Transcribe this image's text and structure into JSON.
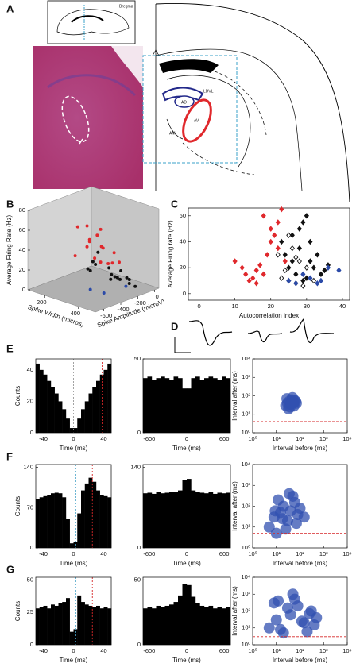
{
  "panel_labels": [
    "A",
    "B",
    "C",
    "D",
    "E",
    "F",
    "G"
  ],
  "atlas": {
    "labels": [
      "Bregma",
      "LDVL",
      "AD",
      "AV",
      "AM"
    ]
  },
  "chart_data": [
    {
      "type": "scatter3d",
      "xlabel": "Spike Width (micros)",
      "ylabel": "Spike Amplitude (microV)",
      "zlabel": "Average Firing Rate (Hz)",
      "xlim": [
        100,
        500
      ],
      "xticks": [
        200,
        400
      ],
      "ylim": [
        -700,
        50
      ],
      "yticks": [
        -600,
        -400,
        -200,
        0
      ],
      "zlim": [
        0,
        80
      ],
      "zticks": [
        0,
        20,
        40,
        60,
        80
      ],
      "series": [
        {
          "color": "#e0282c",
          "x": [
            250,
            280,
            300,
            320,
            260,
            290,
            310,
            330,
            350,
            270,
            240,
            300,
            280,
            320,
            340,
            260
          ],
          "y": [
            -300,
            -200,
            -400,
            -250,
            -150,
            -350,
            -100,
            -300,
            -200,
            -450,
            -250,
            -150,
            -500,
            -350,
            -100,
            -200
          ],
          "z": [
            60,
            55,
            45,
            40,
            35,
            50,
            30,
            28,
            25,
            65,
            42,
            20,
            38,
            33,
            22,
            48
          ]
        },
        {
          "color": "#111111",
          "x": [
            350,
            380,
            400,
            420,
            360,
            390,
            410,
            370,
            430,
            450,
            340,
            400,
            380,
            420,
            440,
            460
          ],
          "y": [
            -400,
            -300,
            -200,
            -350,
            -450,
            -250,
            -150,
            -500,
            -300,
            -200,
            -350,
            -100,
            -550,
            -250,
            -400,
            -150
          ],
          "z": [
            30,
            25,
            20,
            22,
            35,
            15,
            12,
            28,
            18,
            10,
            40,
            8,
            32,
            14,
            20,
            6
          ]
        },
        {
          "color": "#2b4aa8",
          "x": [
            420,
            450,
            480
          ],
          "y": [
            -600,
            -500,
            -300
          ],
          "z": [
            15,
            10,
            12
          ]
        }
      ]
    },
    {
      "type": "scatter",
      "marker": "diamond",
      "xlabel": "Autocorrelation index",
      "ylabel": "Average Firing rate (Hz)",
      "xlim": [
        -3,
        42
      ],
      "xticks": [
        0,
        10,
        20,
        30,
        40
      ],
      "ylim": [
        -5,
        66
      ],
      "yticks": [
        0,
        20,
        40,
        60
      ],
      "series": [
        {
          "color": "#e0282c",
          "filled": true,
          "x": [
            10,
            12,
            13,
            14,
            15,
            16,
            17,
            18,
            19,
            20,
            21,
            22,
            23,
            22,
            24,
            20,
            18,
            16
          ],
          "y": [
            25,
            20,
            15,
            10,
            12,
            18,
            22,
            15,
            30,
            40,
            45,
            55,
            65,
            35,
            25,
            50,
            60,
            8
          ]
        },
        {
          "color": "#111111",
          "filled": true,
          "x": [
            23,
            24,
            25,
            26,
            27,
            28,
            29,
            30,
            31,
            32,
            33,
            34,
            25,
            27,
            29,
            31,
            26,
            28,
            30,
            35,
            36
          ],
          "y": [
            40,
            30,
            20,
            25,
            15,
            35,
            10,
            60,
            40,
            20,
            30,
            15,
            10,
            8,
            55,
            25,
            45,
            50,
            12,
            18,
            22
          ]
        },
        {
          "color": "#111111",
          "filled": false,
          "x": [
            22,
            24,
            26,
            28,
            30,
            32,
            23,
            25,
            27,
            29
          ],
          "y": [
            30,
            18,
            35,
            25,
            20,
            10,
            12,
            45,
            28,
            6
          ]
        },
        {
          "color": "#2b4aa8",
          "filled": true,
          "x": [
            25,
            27,
            29,
            31,
            33,
            34,
            36,
            39
          ],
          "y": [
            10,
            8,
            15,
            12,
            8,
            10,
            20,
            18
          ]
        }
      ]
    },
    {
      "type": "histogram",
      "xlabel": "Time (ms)",
      "ylabel": "Counts",
      "xlim": [
        -50,
        50
      ],
      "xticks": [
        -40,
        0,
        40
      ],
      "ylim": [
        0,
        47
      ],
      "yticks": [
        0,
        20,
        40
      ],
      "bins": [
        -50,
        -45,
        -40,
        -35,
        -30,
        -25,
        -20,
        -15,
        -10,
        -5,
        0,
        5,
        10,
        15,
        20,
        25,
        30,
        35,
        40,
        45,
        50
      ],
      "counts": [
        44,
        40,
        37,
        33,
        29,
        25,
        20,
        15,
        9,
        3,
        3,
        9,
        15,
        20,
        25,
        29,
        33,
        37,
        40,
        44
      ],
      "markers": [
        {
          "value": 0,
          "color": "#9a9a9a"
        },
        {
          "value": 38,
          "color": "#d62728"
        }
      ]
    },
    {
      "type": "histogram",
      "xlabel": "Time (ms)",
      "xlim": [
        -700,
        700
      ],
      "xticks": [
        -600,
        0,
        600
      ],
      "ylim": [
        0,
        50
      ],
      "yticks": [
        0,
        50
      ],
      "bins": [
        -700,
        -630,
        -560,
        -490,
        -420,
        -350,
        -280,
        -210,
        -140,
        -70,
        0,
        70,
        140,
        210,
        280,
        350,
        420,
        490,
        560,
        630,
        700
      ],
      "counts": [
        37,
        38,
        36,
        37,
        38,
        37,
        36,
        38,
        37,
        30,
        30,
        37,
        38,
        36,
        37,
        38,
        37,
        36,
        38,
        37
      ]
    },
    {
      "type": "scatter",
      "log": true,
      "marker": "dot",
      "xlabel": "Interval before (ms)",
      "ylabel": "Interval after (ms)",
      "xlim": [
        1,
        10000
      ],
      "ylim": [
        1,
        10000
      ],
      "xticks": [
        {
          "value": 1,
          "label": "10⁰"
        },
        {
          "value": 10,
          "label": "10¹"
        },
        {
          "value": 100,
          "label": "10²"
        },
        {
          "value": 1000,
          "label": "10³"
        },
        {
          "value": 10000,
          "label": "10⁴"
        }
      ],
      "yticks": [
        {
          "value": 1,
          "label": "10⁰"
        },
        {
          "value": 10,
          "label": "10¹"
        },
        {
          "value": 100,
          "label": "10²"
        },
        {
          "value": 1000,
          "label": "10³"
        },
        {
          "value": 10000,
          "label": "10⁴"
        }
      ],
      "hline": {
        "value": 4,
        "color": "#d62728"
      },
      "series": [
        {
          "color": "#3150b0",
          "filled": true,
          "x": [
            25,
            30,
            35,
            40,
            45,
            50,
            55,
            60,
            70,
            28,
            38,
            48,
            65,
            33,
            42,
            52
          ],
          "y": [
            30,
            40,
            50,
            35,
            60,
            45,
            28,
            55,
            40,
            70,
            25,
            80,
            50,
            20,
            38,
            42
          ]
        }
      ]
    },
    {
      "type": "histogram",
      "xlabel": "Time (ms)",
      "ylabel": "Counts",
      "xlim": [
        -50,
        50
      ],
      "xticks": [
        -40,
        0,
        40
      ],
      "ylim": [
        0,
        145
      ],
      "yticks": [
        0,
        70,
        140
      ],
      "bins": [
        -50,
        -45,
        -40,
        -35,
        -30,
        -25,
        -20,
        -15,
        -10,
        -5,
        0,
        5,
        10,
        15,
        20,
        25,
        30,
        35,
        40,
        45,
        50
      ],
      "counts": [
        85,
        88,
        90,
        92,
        95,
        96,
        95,
        88,
        50,
        8,
        10,
        60,
        100,
        112,
        122,
        115,
        100,
        92,
        90,
        88
      ],
      "markers": [
        {
          "value": 3,
          "color": "#4aa3c8"
        },
        {
          "value": 25,
          "color": "#d62728"
        }
      ]
    },
    {
      "type": "histogram",
      "xlabel": "Time (ms)",
      "xlim": [
        -700,
        700
      ],
      "xticks": [
        -600,
        0,
        600
      ],
      "ylim": [
        0,
        145
      ],
      "yticks": [
        0,
        140
      ],
      "bins": [
        -700,
        -630,
        -560,
        -490,
        -420,
        -350,
        -280,
        -210,
        -140,
        -70,
        0,
        70,
        140,
        210,
        280,
        350,
        420,
        490,
        560,
        630,
        700
      ],
      "counts": [
        95,
        96,
        94,
        97,
        95,
        96,
        98,
        97,
        100,
        118,
        120,
        100,
        97,
        96,
        95,
        97,
        94,
        96,
        95,
        96
      ]
    },
    {
      "type": "scatter",
      "log": true,
      "marker": "dot",
      "xlabel": "Interval before (ms)",
      "ylabel": "Interval after (ms)",
      "xlim": [
        1,
        10000
      ],
      "ylim": [
        1,
        10000
      ],
      "xticks": [
        {
          "value": 1,
          "label": "10⁰"
        },
        {
          "value": 10,
          "label": "10¹"
        },
        {
          "value": 100,
          "label": "10²"
        },
        {
          "value": 1000,
          "label": "10³"
        },
        {
          "value": 10000,
          "label": "10⁴"
        }
      ],
      "yticks": [
        {
          "value": 1,
          "label": "10⁰"
        },
        {
          "value": 10,
          "label": "10¹"
        },
        {
          "value": 100,
          "label": "10²"
        },
        {
          "value": 1000,
          "label": "10³"
        },
        {
          "value": 10000,
          "label": "10⁴"
        }
      ],
      "hline": {
        "value": 5,
        "color": "#d62728"
      },
      "series": [
        {
          "color": "#3150b0",
          "filled": true,
          "x": [
            5,
            8,
            10,
            15,
            20,
            30,
            40,
            60,
            80,
            100,
            150,
            12,
            25,
            50,
            70,
            9,
            18,
            35
          ],
          "y": [
            10,
            30,
            5,
            50,
            100,
            20,
            60,
            150,
            40,
            80,
            30,
            200,
            8,
            300,
            15,
            60,
            25,
            400
          ]
        }
      ]
    },
    {
      "type": "histogram",
      "xlabel": "Time (ms)",
      "ylabel": "Counts",
      "xlim": [
        -50,
        50
      ],
      "xticks": [
        -40,
        0,
        40
      ],
      "ylim": [
        0,
        52
      ],
      "yticks": [
        0,
        25,
        50
      ],
      "bins": [
        -50,
        -45,
        -40,
        -35,
        -30,
        -25,
        -20,
        -15,
        -10,
        -5,
        0,
        5,
        10,
        15,
        20,
        25,
        30,
        35,
        40,
        45,
        50
      ],
      "counts": [
        28,
        29,
        30,
        28,
        31,
        30,
        32,
        33,
        36,
        10,
        12,
        38,
        33,
        31,
        30,
        29,
        30,
        28,
        29,
        28
      ],
      "markers": [
        {
          "value": 3,
          "color": "#4aa3c8"
        },
        {
          "value": 25,
          "color": "#d62728"
        }
      ]
    },
    {
      "type": "histogram",
      "xlabel": "Time (ms)",
      "xlim": [
        -700,
        700
      ],
      "xticks": [
        -600,
        0,
        600
      ],
      "ylim": [
        0,
        52
      ],
      "yticks": [
        0,
        50
      ],
      "bins": [
        -700,
        -630,
        -560,
        -490,
        -420,
        -350,
        -280,
        -210,
        -140,
        -70,
        0,
        70,
        140,
        210,
        280,
        350,
        420,
        490,
        560,
        630,
        700
      ],
      "counts": [
        28,
        29,
        28,
        30,
        29,
        30,
        31,
        33,
        38,
        47,
        46,
        37,
        32,
        30,
        29,
        30,
        28,
        29,
        28,
        29
      ]
    },
    {
      "type": "scatter",
      "log": true,
      "marker": "dot",
      "xlabel": "Interval before (ms)",
      "ylabel": "Interval after (ms)",
      "xlim": [
        1,
        10000
      ],
      "ylim": [
        1,
        10000
      ],
      "xticks": [
        {
          "value": 1,
          "label": "10⁰"
        },
        {
          "value": 10,
          "label": "10¹"
        },
        {
          "value": 100,
          "label": "10²"
        },
        {
          "value": 1000,
          "label": "10³"
        },
        {
          "value": 10000,
          "label": "10⁴"
        }
      ],
      "yticks": [
        {
          "value": 1,
          "label": "10⁰"
        },
        {
          "value": 10,
          "label": "10¹"
        },
        {
          "value": 100,
          "label": "10²"
        },
        {
          "value": 1000,
          "label": "10³"
        },
        {
          "value": 10000,
          "label": "10⁴"
        }
      ],
      "hline": {
        "value": 3,
        "color": "#d62728"
      },
      "series": [
        {
          "color": "#3150b0",
          "filled": true,
          "x": [
            5,
            10,
            20,
            40,
            80,
            150,
            300,
            500,
            8,
            15,
            30,
            60,
            120,
            250,
            400,
            12,
            50,
            200
          ],
          "y": [
            10,
            30,
            5,
            60,
            200,
            20,
            100,
            40,
            300,
            8,
            150,
            500,
            25,
            70,
            15,
            400,
            1000,
            6
          ]
        }
      ]
    }
  ]
}
